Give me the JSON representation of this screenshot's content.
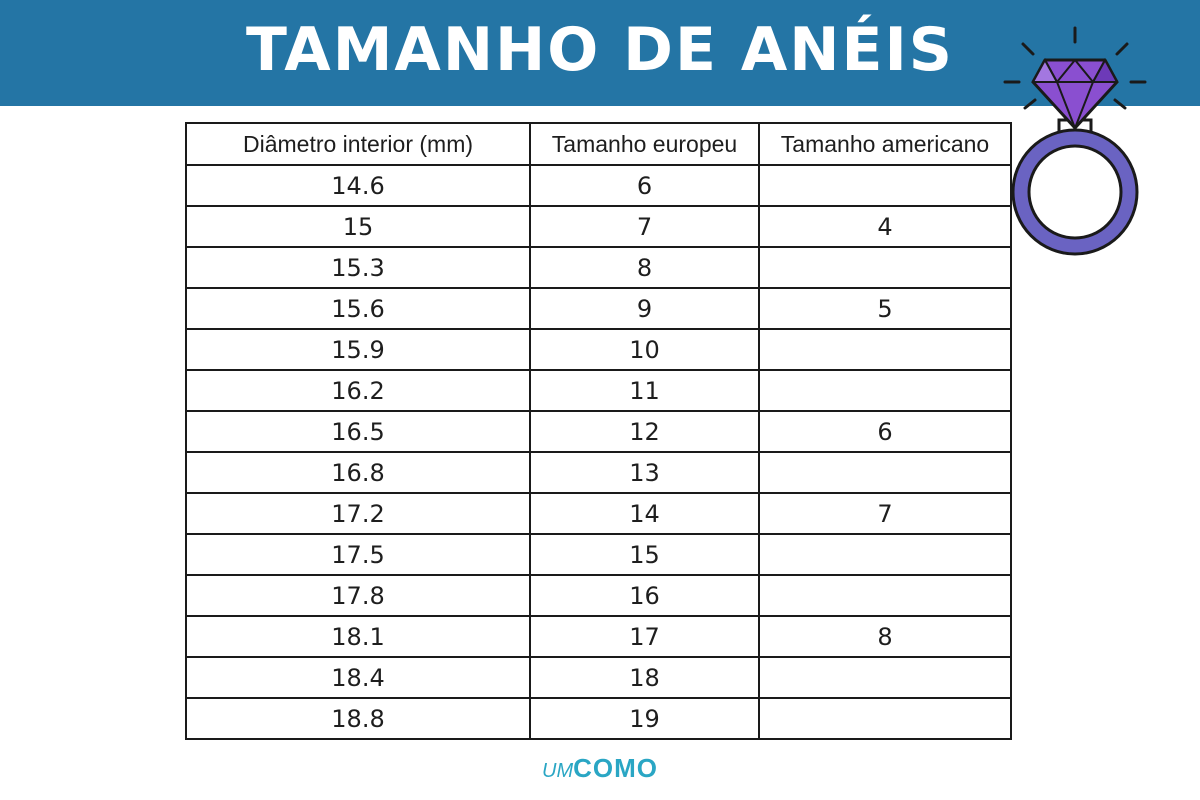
{
  "header": {
    "title": "TAMANHO DE ANÉIS"
  },
  "table": {
    "headers": [
      "Diâmetro interior (mm)",
      "Tamanho europeu",
      "Tamanho americano"
    ],
    "rows": [
      [
        "14.6",
        "6",
        ""
      ],
      [
        "15",
        "7",
        "4"
      ],
      [
        "15.3",
        "8",
        ""
      ],
      [
        "15.6",
        "9",
        "5"
      ],
      [
        "15.9",
        "10",
        ""
      ],
      [
        "16.2",
        "11",
        ""
      ],
      [
        "16.5",
        "12",
        "6"
      ],
      [
        "16.8",
        "13",
        ""
      ],
      [
        "17.2",
        "14",
        "7"
      ],
      [
        "17.5",
        "15",
        ""
      ],
      [
        "17.8",
        "16",
        ""
      ],
      [
        "18.1",
        "17",
        "8"
      ],
      [
        "18.4",
        "18",
        ""
      ],
      [
        "18.8",
        "19",
        ""
      ]
    ]
  },
  "logo": {
    "prefix": "UM",
    "main": "COMO"
  },
  "colors": {
    "banner": "#2475a5",
    "ring_band": "#6a63c2",
    "gem": "#8a4fd0",
    "logo": "#2aa6c4"
  },
  "icons": {
    "ring": "diamond-ring-icon"
  }
}
